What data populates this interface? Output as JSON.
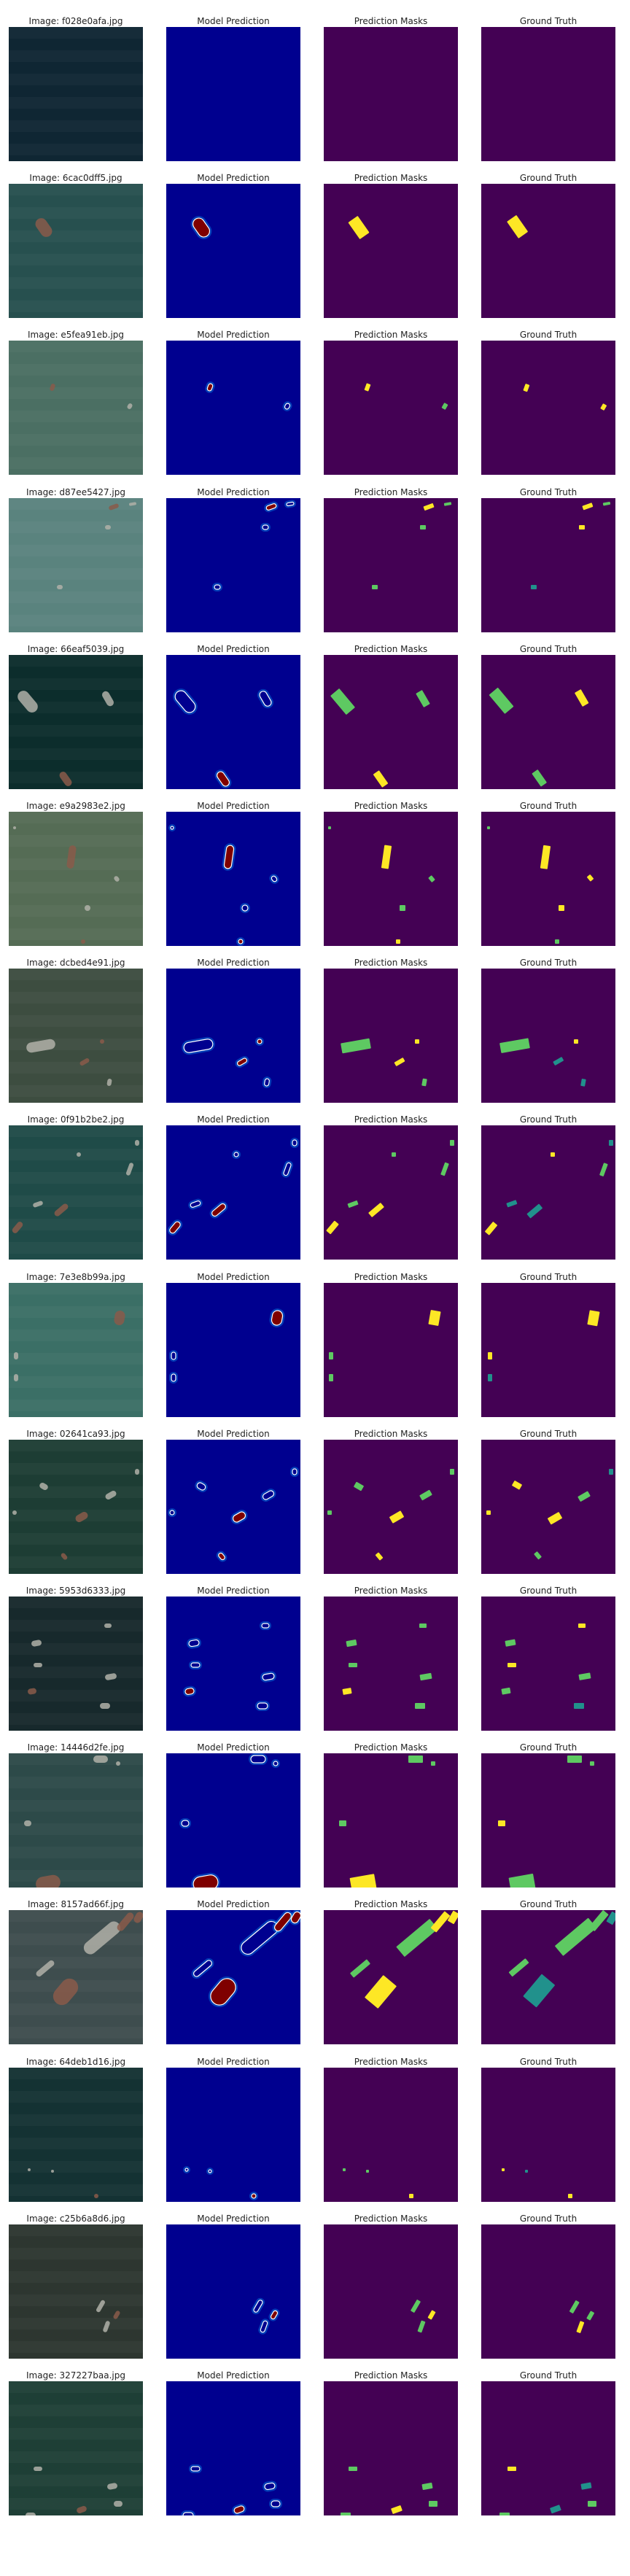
{
  "column_titles": [
    "Model Prediction",
    "Prediction Masks",
    "Ground Truth"
  ],
  "image_prefix": "Image: ",
  "colors": {
    "prediction_background": "#00008f",
    "mask_background": "#440154",
    "mask_low": "#21918c",
    "mask_mid": "#5ec962",
    "mask_high": "#fde725",
    "prediction_hot": "#7f0000",
    "prediction_warm": "#ff4000",
    "prediction_cool": "#00aaff"
  },
  "rows": [
    {
      "image": "f028e0afa.jpg",
      "photo": "#0f2633"
    },
    {
      "image": "6cac0dff5.jpg",
      "photo": "#27504f"
    },
    {
      "image": "e5fea91eb.jpg",
      "photo": "#4b6f63"
    },
    {
      "image": "d87ee5427.jpg",
      "photo": "#5a837e"
    },
    {
      "image": "66eaf5039.jpg",
      "photo": "#0c2d2c"
    },
    {
      "image": "e9a2983e2.jpg",
      "photo": "#556c55"
    },
    {
      "image": "dcbed4e91.jpg",
      "photo": "#3d4d40"
    },
    {
      "image": "0f91b2be2.jpg",
      "photo": "#1f4b48"
    },
    {
      "image": "7e3e8b99a.jpg",
      "photo": "#3b6f66"
    },
    {
      "image": "02641ca93.jpg",
      "photo": "#1d3d34"
    },
    {
      "image": "5953d6333.jpg",
      "photo": "#17292c"
    },
    {
      "image": "14446d2fe.jpg",
      "photo": "#2d4a49"
    },
    {
      "image": "8157ad66f.jpg",
      "photo": "#3e4d4e"
    },
    {
      "image": "64deb1d16.jpg",
      "photo": "#143233"
    },
    {
      "image": "c25b6a8d6.jpg",
      "photo": "#2d3630"
    },
    {
      "image": "327227baa.jpg",
      "photo": "#1e3f36"
    }
  ]
}
